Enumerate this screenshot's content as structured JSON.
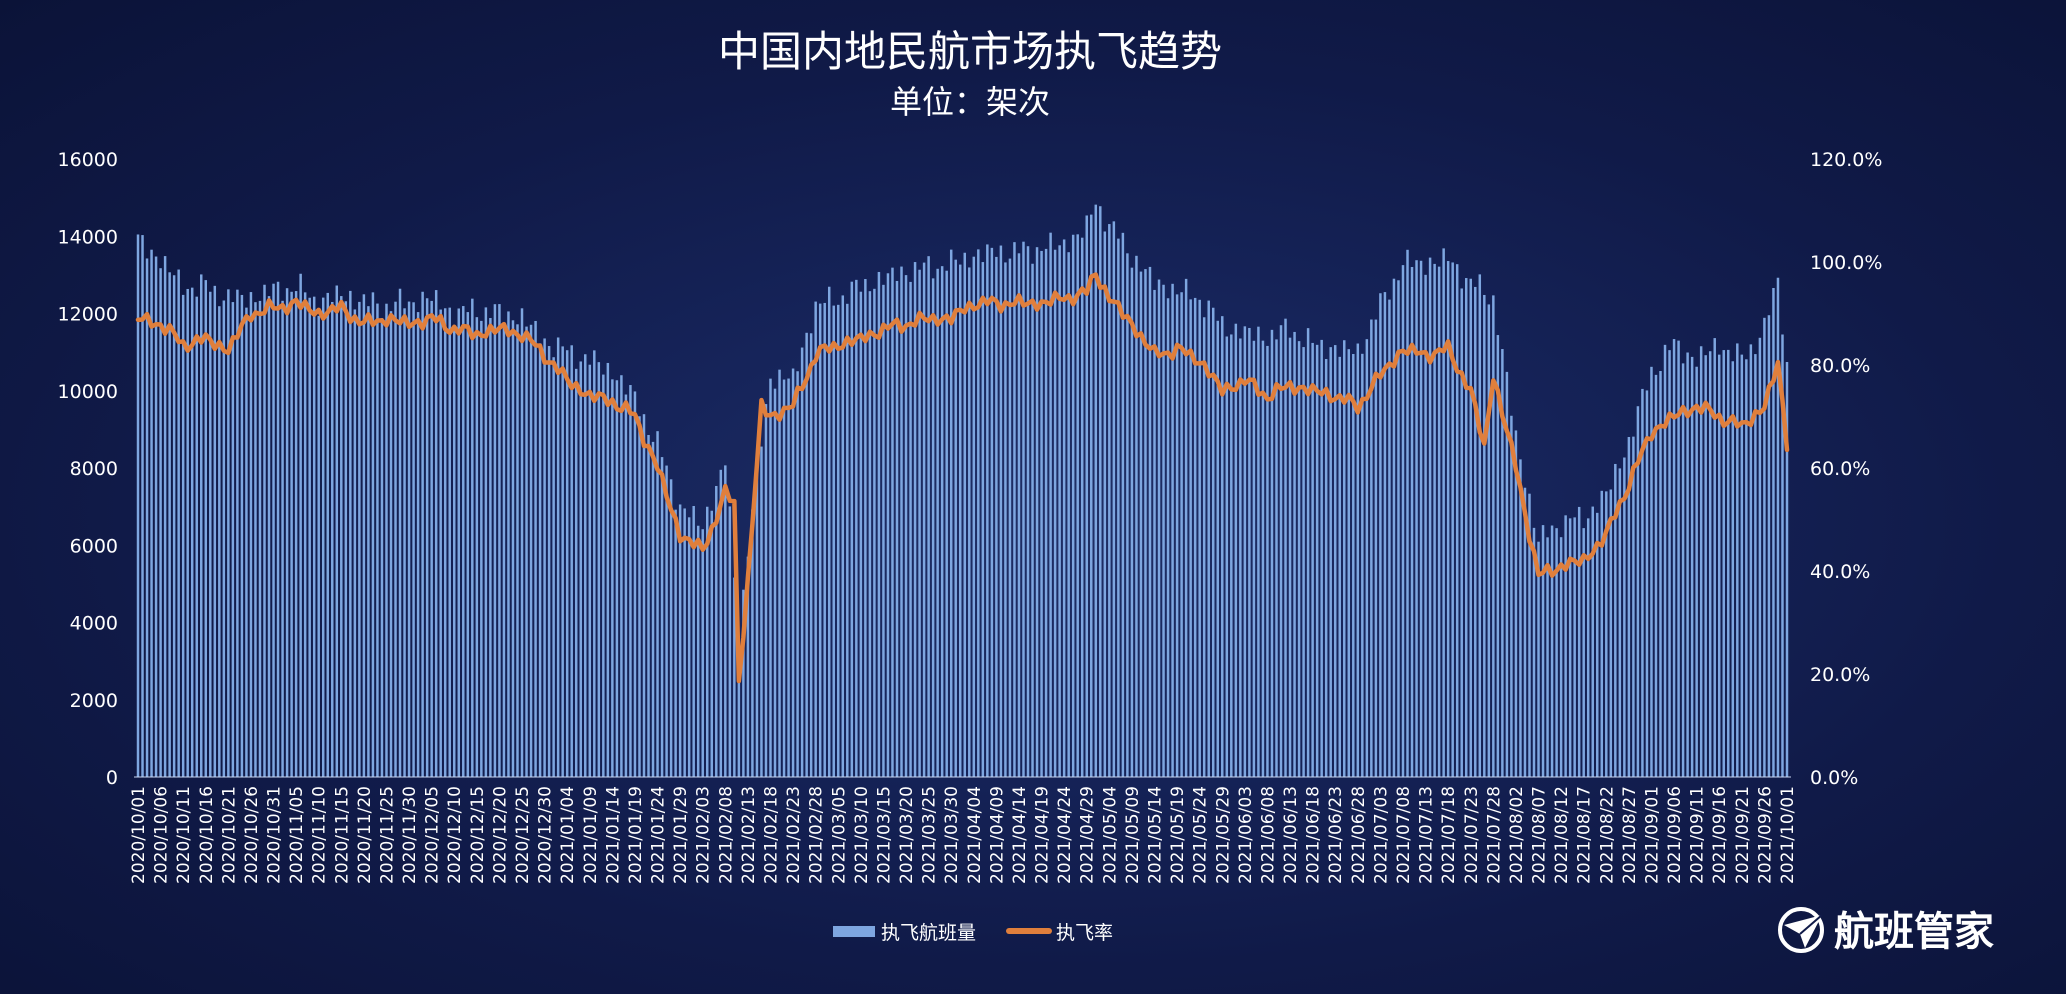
{
  "chart_data": {
    "type": "bar+line",
    "title": "中国内地民航市场执飞趋势",
    "subtitle": "单位：架次",
    "y_left": {
      "min": 0,
      "max": 16000,
      "step": 2000,
      "ticks": [
        "0",
        "2000",
        "4000",
        "6000",
        "8000",
        "10000",
        "12000",
        "14000",
        "16000"
      ]
    },
    "y_right": {
      "min": 0,
      "max": 1.2,
      "step": 0.2,
      "ticks": [
        "0.0%",
        "20.0%",
        "40.0%",
        "60.0%",
        "80.0%",
        "100.0%",
        "120.0%"
      ]
    },
    "x_start": "2020-10-01",
    "x_end": "2021-10-01",
    "x_tick_labels": [
      "2020/10/01",
      "2020/10/06",
      "2020/10/11",
      "2020/10/16",
      "2020/10/21",
      "2020/10/26",
      "2020/10/31",
      "2020/11/05",
      "2020/11/10",
      "2020/11/15",
      "2020/11/20",
      "2020/11/25",
      "2020/11/30",
      "2020/12/05",
      "2020/12/10",
      "2020/12/15",
      "2020/12/20",
      "2020/12/25",
      "2020/12/30",
      "2021/01/04",
      "2021/01/09",
      "2021/01/14",
      "2021/01/19",
      "2021/01/24",
      "2021/01/29",
      "2021/02/03",
      "2021/02/08",
      "2021/02/13",
      "2021/02/18",
      "2021/02/23",
      "2021/02/28",
      "2021/03/05",
      "2021/03/10",
      "2021/03/15",
      "2021/03/20",
      "2021/03/25",
      "2021/03/30",
      "2021/04/04",
      "2021/04/09",
      "2021/04/14",
      "2021/04/19",
      "2021/04/24",
      "2021/04/29",
      "2021/05/04",
      "2021/05/09",
      "2021/05/14",
      "2021/05/19",
      "2021/05/24",
      "2021/05/29",
      "2021/06/03",
      "2021/06/08",
      "2021/06/13",
      "2021/06/18",
      "2021/06/23",
      "2021/06/28",
      "2021/07/03",
      "2021/07/08",
      "2021/07/13",
      "2021/07/18",
      "2021/07/23",
      "2021/07/28",
      "2021/08/02",
      "2021/08/07",
      "2021/08/12",
      "2021/08/17",
      "2021/08/22",
      "2021/08/27",
      "2021/09/01",
      "2021/09/06",
      "2021/09/11",
      "2021/09/16",
      "2021/09/21",
      "2021/09/26",
      "2021/10/01"
    ],
    "series": [
      {
        "name": "执飞航班量",
        "axis": "left",
        "color": "#7ea6e0",
        "anchors": [
          [
            "2020-10-01",
            13900
          ],
          [
            "2020-10-06",
            13400
          ],
          [
            "2020-10-11",
            12700
          ],
          [
            "2020-10-16",
            12700
          ],
          [
            "2020-10-21",
            12400
          ],
          [
            "2020-10-26",
            12400
          ],
          [
            "2020-10-31",
            12600
          ],
          [
            "2020-11-05",
            12700
          ],
          [
            "2020-11-10",
            12300
          ],
          [
            "2020-11-15",
            12500
          ],
          [
            "2020-11-20",
            12300
          ],
          [
            "2020-11-25",
            12200
          ],
          [
            "2020-11-30",
            12300
          ],
          [
            "2020-12-05",
            12400
          ],
          [
            "2020-12-10",
            12000
          ],
          [
            "2020-12-15",
            12100
          ],
          [
            "2020-12-20",
            12000
          ],
          [
            "2020-12-25",
            11900
          ],
          [
            "2020-12-30",
            11300
          ],
          [
            "2021-01-04",
            11000
          ],
          [
            "2021-01-09",
            10800
          ],
          [
            "2021-01-14",
            10500
          ],
          [
            "2021-01-19",
            9800
          ],
          [
            "2021-01-24",
            8600
          ],
          [
            "2021-01-29",
            7000
          ],
          [
            "2021-02-03",
            6500
          ],
          [
            "2021-02-08",
            8200
          ],
          [
            "2021-02-11",
            3600
          ],
          [
            "2021-02-13",
            6000
          ],
          [
            "2021-02-18",
            10400
          ],
          [
            "2021-02-23",
            10300
          ],
          [
            "2021-02-28",
            12200
          ],
          [
            "2021-03-05",
            12400
          ],
          [
            "2021-03-10",
            12700
          ],
          [
            "2021-03-15",
            12900
          ],
          [
            "2021-03-20",
            13100
          ],
          [
            "2021-03-25",
            13200
          ],
          [
            "2021-03-30",
            13300
          ],
          [
            "2021-04-04",
            13500
          ],
          [
            "2021-04-09",
            13600
          ],
          [
            "2021-04-14",
            13600
          ],
          [
            "2021-04-19",
            13700
          ],
          [
            "2021-04-24",
            13800
          ],
          [
            "2021-04-29",
            14200
          ],
          [
            "2021-05-01",
            14900
          ],
          [
            "2021-05-04",
            14300
          ],
          [
            "2021-05-09",
            13500
          ],
          [
            "2021-05-14",
            12800
          ],
          [
            "2021-05-19",
            12600
          ],
          [
            "2021-05-24",
            12400
          ],
          [
            "2021-05-29",
            11700
          ],
          [
            "2021-06-03",
            11500
          ],
          [
            "2021-06-08",
            11400
          ],
          [
            "2021-06-13",
            11600
          ],
          [
            "2021-06-18",
            11200
          ],
          [
            "2021-06-23",
            11100
          ],
          [
            "2021-06-28",
            11000
          ],
          [
            "2021-07-03",
            12200
          ],
          [
            "2021-07-08",
            13300
          ],
          [
            "2021-07-13",
            13300
          ],
          [
            "2021-07-18",
            13400
          ],
          [
            "2021-07-23",
            12800
          ],
          [
            "2021-07-28",
            12400
          ],
          [
            "2021-08-02",
            8800
          ],
          [
            "2021-08-07",
            6100
          ],
          [
            "2021-08-12",
            6600
          ],
          [
            "2021-08-17",
            6700
          ],
          [
            "2021-08-22",
            7300
          ],
          [
            "2021-08-27",
            8700
          ],
          [
            "2021-09-01",
            10500
          ],
          [
            "2021-09-06",
            11200
          ],
          [
            "2021-09-11",
            10800
          ],
          [
            "2021-09-16",
            11200
          ],
          [
            "2021-09-21",
            10800
          ],
          [
            "2021-09-26",
            11600
          ],
          [
            "2021-09-29",
            12900
          ],
          [
            "2021-10-01",
            10600
          ]
        ]
      },
      {
        "name": "执飞率",
        "axis": "right",
        "color": "#e07f3c",
        "anchors": [
          [
            "2020-10-01",
            0.89
          ],
          [
            "2020-10-06",
            0.88
          ],
          [
            "2020-10-11",
            0.84
          ],
          [
            "2020-10-16",
            0.85
          ],
          [
            "2020-10-21",
            0.83
          ],
          [
            "2020-10-26",
            0.9
          ],
          [
            "2020-10-31",
            0.91
          ],
          [
            "2020-11-05",
            0.92
          ],
          [
            "2020-11-10",
            0.9
          ],
          [
            "2020-11-15",
            0.91
          ],
          [
            "2020-11-20",
            0.88
          ],
          [
            "2020-11-25",
            0.89
          ],
          [
            "2020-11-30",
            0.88
          ],
          [
            "2020-12-05",
            0.89
          ],
          [
            "2020-12-10",
            0.87
          ],
          [
            "2020-12-15",
            0.86
          ],
          [
            "2020-12-20",
            0.87
          ],
          [
            "2020-12-25",
            0.86
          ],
          [
            "2020-12-30",
            0.82
          ],
          [
            "2021-01-04",
            0.77
          ],
          [
            "2021-01-09",
            0.74
          ],
          [
            "2021-01-14",
            0.73
          ],
          [
            "2021-01-19",
            0.7
          ],
          [
            "2021-01-24",
            0.6
          ],
          [
            "2021-01-29",
            0.47
          ],
          [
            "2021-02-03",
            0.44
          ],
          [
            "2021-02-08",
            0.55
          ],
          [
            "2021-02-10",
            0.53
          ],
          [
            "2021-02-11",
            0.19
          ],
          [
            "2021-02-13",
            0.38
          ],
          [
            "2021-02-16",
            0.72
          ],
          [
            "2021-02-18",
            0.7
          ],
          [
            "2021-02-23",
            0.72
          ],
          [
            "2021-02-28",
            0.82
          ],
          [
            "2021-03-05",
            0.84
          ],
          [
            "2021-03-10",
            0.85
          ],
          [
            "2021-03-15",
            0.87
          ],
          [
            "2021-03-20",
            0.88
          ],
          [
            "2021-03-25",
            0.89
          ],
          [
            "2021-03-30",
            0.89
          ],
          [
            "2021-04-04",
            0.92
          ],
          [
            "2021-04-09",
            0.92
          ],
          [
            "2021-04-14",
            0.92
          ],
          [
            "2021-04-19",
            0.92
          ],
          [
            "2021-04-24",
            0.93
          ],
          [
            "2021-04-29",
            0.94
          ],
          [
            "2021-05-01",
            0.98
          ],
          [
            "2021-05-04",
            0.93
          ],
          [
            "2021-05-09",
            0.88
          ],
          [
            "2021-05-14",
            0.82
          ],
          [
            "2021-05-19",
            0.83
          ],
          [
            "2021-05-24",
            0.81
          ],
          [
            "2021-05-29",
            0.75
          ],
          [
            "2021-06-03",
            0.77
          ],
          [
            "2021-06-08",
            0.74
          ],
          [
            "2021-06-13",
            0.76
          ],
          [
            "2021-06-18",
            0.75
          ],
          [
            "2021-06-23",
            0.74
          ],
          [
            "2021-06-28",
            0.72
          ],
          [
            "2021-07-03",
            0.78
          ],
          [
            "2021-07-08",
            0.83
          ],
          [
            "2021-07-13",
            0.82
          ],
          [
            "2021-07-18",
            0.83
          ],
          [
            "2021-07-23",
            0.75
          ],
          [
            "2021-07-26",
            0.64
          ],
          [
            "2021-07-28",
            0.78
          ],
          [
            "2021-08-02",
            0.6
          ],
          [
            "2021-08-07",
            0.39
          ],
          [
            "2021-08-12",
            0.41
          ],
          [
            "2021-08-17",
            0.42
          ],
          [
            "2021-08-22",
            0.47
          ],
          [
            "2021-08-27",
            0.57
          ],
          [
            "2021-09-01",
            0.67
          ],
          [
            "2021-09-06",
            0.7
          ],
          [
            "2021-09-11",
            0.72
          ],
          [
            "2021-09-16",
            0.7
          ],
          [
            "2021-09-21",
            0.68
          ],
          [
            "2021-09-26",
            0.72
          ],
          [
            "2021-09-29",
            0.8
          ],
          [
            "2021-10-01",
            0.65
          ]
        ]
      }
    ],
    "legend": {
      "position": "bottom-center",
      "items": [
        "执飞航班量",
        "执飞率"
      ]
    },
    "grid": false
  },
  "logo": {
    "text": "航班管家"
  },
  "colors": {
    "bar": "#7ea6e0",
    "line": "#e07f3c",
    "background": "#101a48"
  }
}
